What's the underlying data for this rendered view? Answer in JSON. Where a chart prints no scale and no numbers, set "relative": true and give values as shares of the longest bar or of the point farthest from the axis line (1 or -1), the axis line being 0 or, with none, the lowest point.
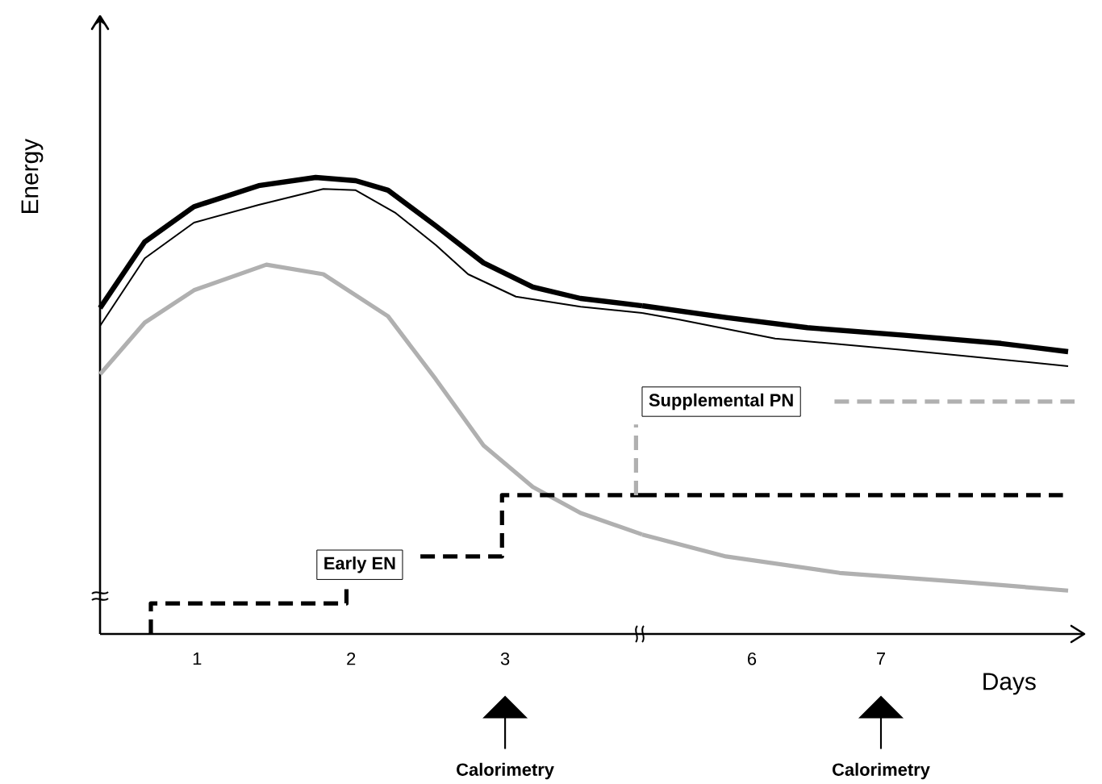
{
  "chart_data": [
    {
      "type": "line",
      "relative": true,
      "ylabel": "Energy",
      "xlim": [
        0.37,
        3.89
      ],
      "xticks": [
        1,
        2,
        3
      ],
      "series": [
        {
          "color": "#000000",
          "line_style": "solid",
          "x": [
            0.37,
            0.66,
            0.98,
            1.4,
            1.77,
            2.03,
            2.24,
            2.55,
            2.86,
            3.18,
            3.49,
            3.89
          ],
          "values": [
            0.714,
            0.859,
            0.936,
            0.982,
            1,
            0.993,
            0.972,
            0.894,
            0.813,
            0.76,
            0.735,
            0.719
          ]
        },
        {
          "color": "#000000",
          "line_style": "solid",
          "x": [
            0.37,
            0.66,
            0.98,
            1.4,
            1.82,
            2.03,
            2.29,
            2.55,
            2.76,
            3.07,
            3.49,
            3.89
          ],
          "values": [
            0.675,
            0.823,
            0.901,
            0.94,
            0.975,
            0.972,
            0.922,
            0.852,
            0.788,
            0.739,
            0.717,
            0.703
          ]
        },
        {
          "color": "#b0b0b0",
          "line_style": "solid",
          "x": [
            0.37,
            0.66,
            0.98,
            1.45,
            1.82,
            2.24,
            2.55,
            2.86,
            3.18,
            3.49,
            3.89
          ],
          "values": [
            0.569,
            0.682,
            0.753,
            0.809,
            0.788,
            0.696,
            0.558,
            0.413,
            0.322,
            0.265,
            0.218
          ]
        },
        {
          "color": "#000000",
          "line_style": "dashed",
          "x": [
            0.7,
            0.7,
            1.97,
            1.97,
            null,
            2.45,
            2.98,
            2.98,
            3.89
          ],
          "values": [
            0,
            0.067,
            0.067,
            0.11,
            null,
            0.17,
            0.17,
            0.304,
            0.304
          ]
        },
        {
          "color": "#b0b0b0",
          "line_style": "dashed",
          "x": [
            3.85,
            3.85
          ],
          "values": [
            0.304,
            0.459
          ]
        }
      ],
      "annotations": [
        "Early EN",
        "Calorimetry"
      ]
    },
    {
      "type": "line",
      "relative": true,
      "xlabel": "Days",
      "xlim": [
        5.15,
        8.575
      ],
      "xticks": [
        6,
        7
      ],
      "series": [
        {
          "color": "#000000",
          "line_style": "solid",
          "x": [
            5.15,
            5.8,
            6.43,
            7.18,
            7.93,
            8.45
          ],
          "values": [
            1,
            0.964,
            0.933,
            0.91,
            0.885,
            0.86
          ]
        },
        {
          "color": "#000000",
          "line_style": "solid",
          "x": [
            5.15,
            5.43,
            6.18,
            7.18,
            8.45
          ],
          "values": [
            0.978,
            0.958,
            0.9,
            0.865,
            0.816
          ]
        },
        {
          "color": "#b0b0b0",
          "line_style": "solid",
          "x": [
            5.15,
            5.8,
            6.68,
            7.68,
            8.45
          ],
          "values": [
            0.303,
            0.236,
            0.186,
            0.157,
            0.132
          ]
        },
        {
          "color": "#000000",
          "line_style": "dashed",
          "x": [
            5.15,
            8.41
          ],
          "values": [
            0.423,
            0.423
          ]
        },
        {
          "color": "#b0b0b0",
          "line_style": "dashed",
          "x": [
            6.64,
            8.5
          ],
          "values": [
            0.708,
            0.708
          ]
        }
      ],
      "annotations": [
        "Supplemental PN",
        "Calorimetry"
      ]
    }
  ]
}
